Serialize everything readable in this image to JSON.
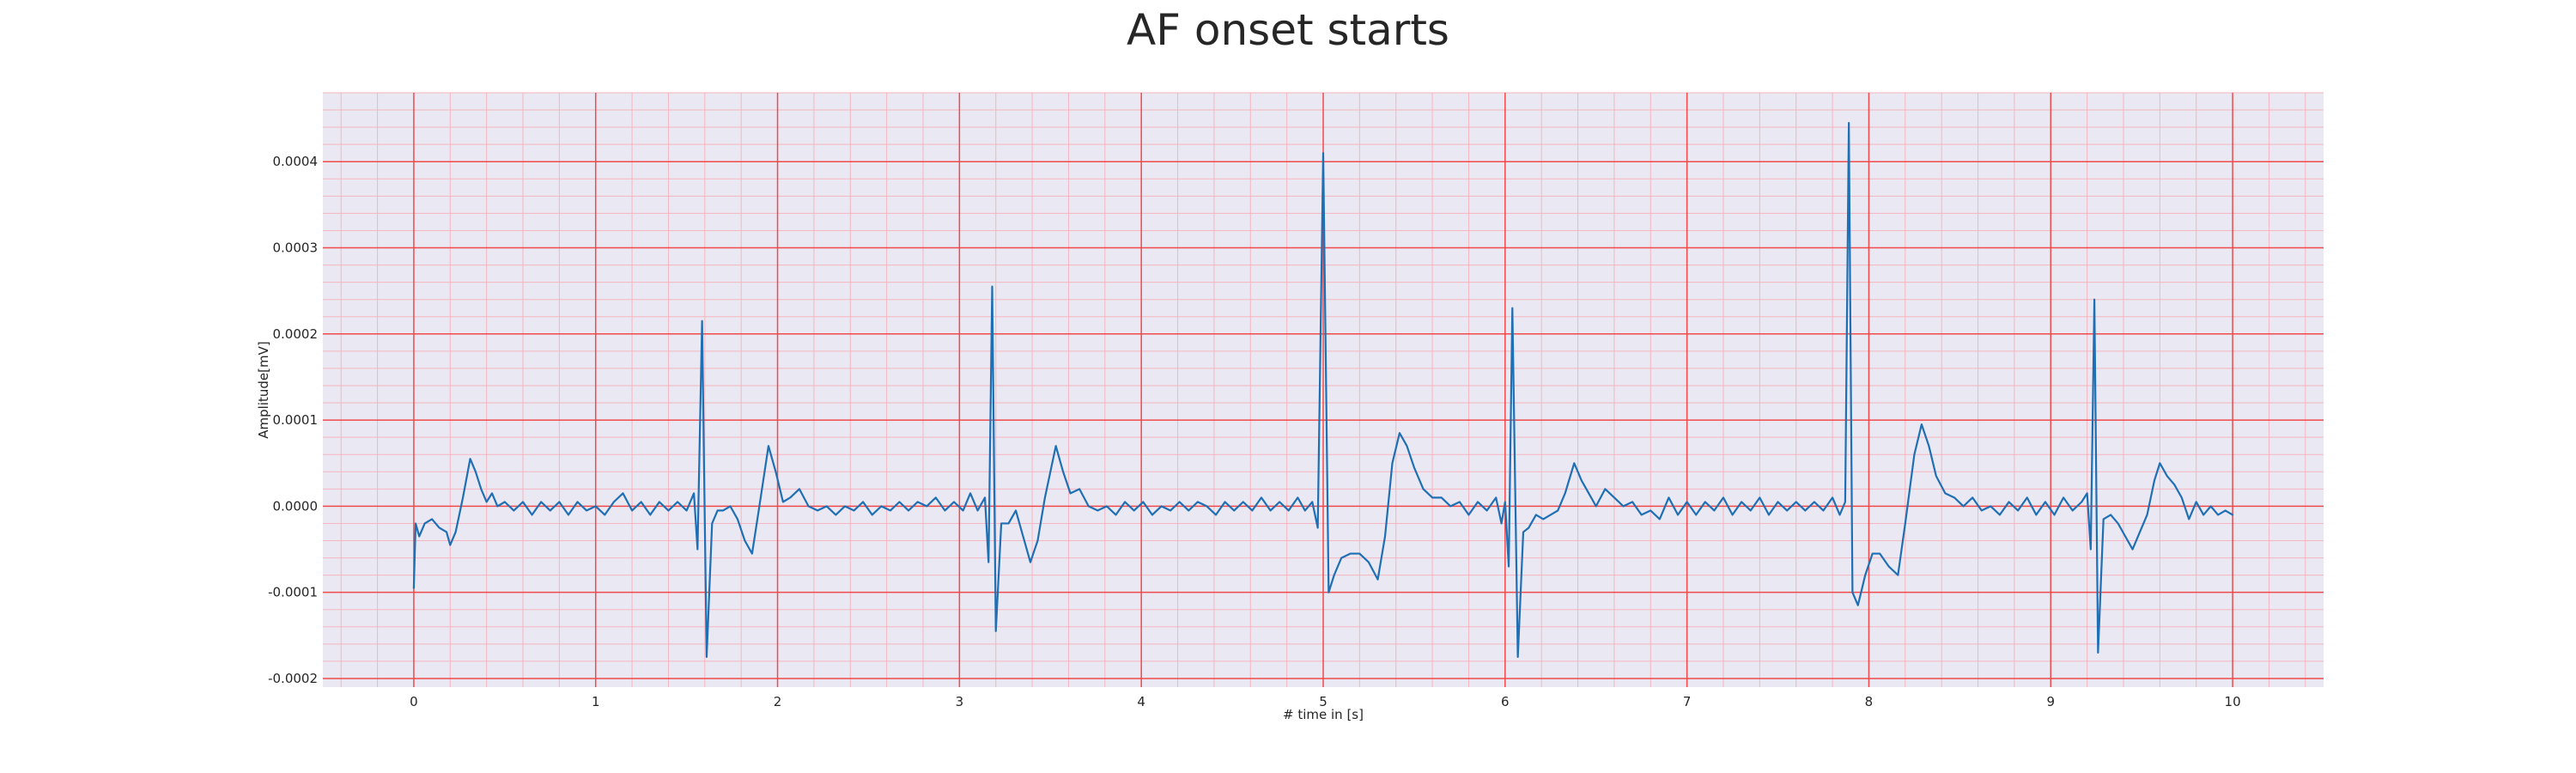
{
  "chart_data": {
    "type": "line",
    "title": "AF onset starts",
    "xlabel": "# time in [s]",
    "ylabel": "Amplitude[mV]",
    "xlim": [
      -0.5,
      10.5
    ],
    "ylim": [
      -0.00021,
      0.00048
    ],
    "x_ticks": [
      0,
      1,
      2,
      3,
      4,
      5,
      6,
      7,
      8,
      9,
      10
    ],
    "x_tick_labels": [
      "0",
      "1",
      "2",
      "3",
      "4",
      "5",
      "6",
      "7",
      "8",
      "9",
      "10"
    ],
    "y_ticks": [
      -0.0002,
      -0.0001,
      0.0,
      0.0001,
      0.0002,
      0.0003,
      0.0004
    ],
    "y_tick_labels": [
      "-0.0002",
      "-0.0001",
      "0.0000",
      "0.0001",
      "0.0002",
      "0.0003",
      "0.0004"
    ],
    "grid": true,
    "major_grid_color": "#f04a4a",
    "minor_grid_color": "#f6b5bf",
    "background_color": "#eae8f2",
    "series": [
      {
        "color": "#1f6fb4",
        "points": [
          [
            0.0,
            -9.5e-05
          ],
          [
            0.01,
            -2e-05
          ],
          [
            0.03,
            -3.5e-05
          ],
          [
            0.06,
            -2e-05
          ],
          [
            0.1,
            -1.5e-05
          ],
          [
            0.14,
            -2.5e-05
          ],
          [
            0.18,
            -3e-05
          ],
          [
            0.2,
            -4.5e-05
          ],
          [
            0.23,
            -3e-05
          ],
          [
            0.27,
            1e-05
          ],
          [
            0.31,
            5.5e-05
          ],
          [
            0.34,
            4e-05
          ],
          [
            0.37,
            2e-05
          ],
          [
            0.4,
            5e-06
          ],
          [
            0.43,
            1.5e-05
          ],
          [
            0.46,
            0.0
          ],
          [
            0.5,
            5e-06
          ],
          [
            0.55,
            -5e-06
          ],
          [
            0.6,
            5e-06
          ],
          [
            0.65,
            -1e-05
          ],
          [
            0.7,
            5e-06
          ],
          [
            0.75,
            -5e-06
          ],
          [
            0.8,
            5e-06
          ],
          [
            0.85,
            -1e-05
          ],
          [
            0.9,
            5e-06
          ],
          [
            0.95,
            -5e-06
          ],
          [
            1.0,
            0.0
          ],
          [
            1.05,
            -1e-05
          ],
          [
            1.1,
            5e-06
          ],
          [
            1.15,
            1.5e-05
          ],
          [
            1.2,
            -5e-06
          ],
          [
            1.25,
            5e-06
          ],
          [
            1.3,
            -1e-05
          ],
          [
            1.35,
            5e-06
          ],
          [
            1.4,
            -5e-06
          ],
          [
            1.45,
            5e-06
          ],
          [
            1.5,
            -5e-06
          ],
          [
            1.54,
            1.5e-05
          ],
          [
            1.56,
            -5e-05
          ],
          [
            1.585,
            0.000215
          ],
          [
            1.61,
            -0.000175
          ],
          [
            1.64,
            -2e-05
          ],
          [
            1.67,
            -5e-06
          ],
          [
            1.7,
            -5e-06
          ],
          [
            1.74,
            0.0
          ],
          [
            1.78,
            -1.5e-05
          ],
          [
            1.82,
            -4e-05
          ],
          [
            1.86,
            -5.5e-05
          ],
          [
            1.9,
            0.0
          ],
          [
            1.95,
            7e-05
          ],
          [
            1.99,
            4e-05
          ],
          [
            2.03,
            5e-06
          ],
          [
            2.07,
            1e-05
          ],
          [
            2.12,
            2e-05
          ],
          [
            2.17,
            0.0
          ],
          [
            2.22,
            -5e-06
          ],
          [
            2.27,
            0.0
          ],
          [
            2.32,
            -1e-05
          ],
          [
            2.37,
            0.0
          ],
          [
            2.42,
            -5e-06
          ],
          [
            2.47,
            5e-06
          ],
          [
            2.52,
            -1e-05
          ],
          [
            2.57,
            0.0
          ],
          [
            2.62,
            -5e-06
          ],
          [
            2.67,
            5e-06
          ],
          [
            2.72,
            -5e-06
          ],
          [
            2.77,
            5e-06
          ],
          [
            2.82,
            0.0
          ],
          [
            2.87,
            1e-05
          ],
          [
            2.92,
            -5e-06
          ],
          [
            2.97,
            5e-06
          ],
          [
            3.02,
            -5e-06
          ],
          [
            3.06,
            1.5e-05
          ],
          [
            3.1,
            -5e-06
          ],
          [
            3.14,
            1e-05
          ],
          [
            3.16,
            -6.5e-05
          ],
          [
            3.18,
            0.000255
          ],
          [
            3.2,
            -0.000145
          ],
          [
            3.23,
            -2e-05
          ],
          [
            3.27,
            -2e-05
          ],
          [
            3.31,
            -5e-06
          ],
          [
            3.35,
            -3.5e-05
          ],
          [
            3.39,
            -6.5e-05
          ],
          [
            3.43,
            -4e-05
          ],
          [
            3.47,
            1e-05
          ],
          [
            3.53,
            7e-05
          ],
          [
            3.57,
            4e-05
          ],
          [
            3.61,
            1.5e-05
          ],
          [
            3.66,
            2e-05
          ],
          [
            3.71,
            0.0
          ],
          [
            3.76,
            -5e-06
          ],
          [
            3.81,
            0.0
          ],
          [
            3.86,
            -1e-05
          ],
          [
            3.91,
            5e-06
          ],
          [
            3.96,
            -5e-06
          ],
          [
            4.01,
            5e-06
          ],
          [
            4.06,
            -1e-05
          ],
          [
            4.11,
            0.0
          ],
          [
            4.16,
            -5e-06
          ],
          [
            4.21,
            5e-06
          ],
          [
            4.26,
            -5e-06
          ],
          [
            4.31,
            5e-06
          ],
          [
            4.36,
            0.0
          ],
          [
            4.41,
            -1e-05
          ],
          [
            4.46,
            5e-06
          ],
          [
            4.51,
            -5e-06
          ],
          [
            4.56,
            5e-06
          ],
          [
            4.61,
            -5e-06
          ],
          [
            4.66,
            1e-05
          ],
          [
            4.71,
            -5e-06
          ],
          [
            4.76,
            5e-06
          ],
          [
            4.81,
            -5e-06
          ],
          [
            4.86,
            1e-05
          ],
          [
            4.9,
            -5e-06
          ],
          [
            4.94,
            5e-06
          ],
          [
            4.97,
            -2.5e-05
          ],
          [
            5.0,
            0.00041
          ],
          [
            5.03,
            -0.0001
          ],
          [
            5.06,
            -8e-05
          ],
          [
            5.1,
            -6e-05
          ],
          [
            5.15,
            -5.5e-05
          ],
          [
            5.2,
            -5.5e-05
          ],
          [
            5.25,
            -6.5e-05
          ],
          [
            5.3,
            -8.5e-05
          ],
          [
            5.34,
            -3.5e-05
          ],
          [
            5.38,
            5e-05
          ],
          [
            5.42,
            8.5e-05
          ],
          [
            5.46,
            7e-05
          ],
          [
            5.5,
            4.5e-05
          ],
          [
            5.55,
            2e-05
          ],
          [
            5.6,
            1e-05
          ],
          [
            5.65,
            1e-05
          ],
          [
            5.7,
            0.0
          ],
          [
            5.75,
            5e-06
          ],
          [
            5.8,
            -1e-05
          ],
          [
            5.85,
            5e-06
          ],
          [
            5.9,
            -5e-06
          ],
          [
            5.95,
            1e-05
          ],
          [
            5.98,
            -2e-05
          ],
          [
            6.0,
            5e-06
          ],
          [
            6.02,
            -7e-05
          ],
          [
            6.04,
            0.00023
          ],
          [
            6.07,
            -0.000175
          ],
          [
            6.1,
            -3e-05
          ],
          [
            6.13,
            -2.5e-05
          ],
          [
            6.17,
            -1e-05
          ],
          [
            6.21,
            -1.5e-05
          ],
          [
            6.25,
            -1e-05
          ],
          [
            6.29,
            -5e-06
          ],
          [
            6.33,
            1.5e-05
          ],
          [
            6.38,
            5e-05
          ],
          [
            6.42,
            3e-05
          ],
          [
            6.46,
            1.5e-05
          ],
          [
            6.5,
            0.0
          ],
          [
            6.55,
            2e-05
          ],
          [
            6.6,
            1e-05
          ],
          [
            6.65,
            0.0
          ],
          [
            6.7,
            5e-06
          ],
          [
            6.75,
            -1e-05
          ],
          [
            6.8,
            -5e-06
          ],
          [
            6.85,
            -1.5e-05
          ],
          [
            6.9,
            1e-05
          ],
          [
            6.95,
            -1e-05
          ],
          [
            7.0,
            5e-06
          ],
          [
            7.05,
            -1e-05
          ],
          [
            7.1,
            5e-06
          ],
          [
            7.15,
            -5e-06
          ],
          [
            7.2,
            1e-05
          ],
          [
            7.25,
            -1e-05
          ],
          [
            7.3,
            5e-06
          ],
          [
            7.35,
            -5e-06
          ],
          [
            7.4,
            1e-05
          ],
          [
            7.45,
            -1e-05
          ],
          [
            7.5,
            5e-06
          ],
          [
            7.55,
            -5e-06
          ],
          [
            7.6,
            5e-06
          ],
          [
            7.65,
            -5e-06
          ],
          [
            7.7,
            5e-06
          ],
          [
            7.75,
            -5e-06
          ],
          [
            7.8,
            1e-05
          ],
          [
            7.84,
            -1e-05
          ],
          [
            7.87,
            5e-06
          ],
          [
            7.89,
            0.000445
          ],
          [
            7.91,
            -0.0001
          ],
          [
            7.94,
            -0.000115
          ],
          [
            7.98,
            -8e-05
          ],
          [
            8.02,
            -5.5e-05
          ],
          [
            8.06,
            -5.5e-05
          ],
          [
            8.11,
            -7e-05
          ],
          [
            8.16,
            -8e-05
          ],
          [
            8.2,
            -2e-05
          ],
          [
            8.25,
            6e-05
          ],
          [
            8.29,
            9.5e-05
          ],
          [
            8.33,
            7e-05
          ],
          [
            8.37,
            3.5e-05
          ],
          [
            8.42,
            1.5e-05
          ],
          [
            8.47,
            1e-05
          ],
          [
            8.52,
            0.0
          ],
          [
            8.57,
            1e-05
          ],
          [
            8.62,
            -5e-06
          ],
          [
            8.67,
            0.0
          ],
          [
            8.72,
            -1e-05
          ],
          [
            8.77,
            5e-06
          ],
          [
            8.82,
            -5e-06
          ],
          [
            8.87,
            1e-05
          ],
          [
            8.92,
            -1e-05
          ],
          [
            8.97,
            5e-06
          ],
          [
            9.02,
            -1e-05
          ],
          [
            9.07,
            1e-05
          ],
          [
            9.12,
            -5e-06
          ],
          [
            9.17,
            5e-06
          ],
          [
            9.2,
            1.5e-05
          ],
          [
            9.22,
            -5e-05
          ],
          [
            9.24,
            0.00024
          ],
          [
            9.26,
            -0.00017
          ],
          [
            9.29,
            -1.5e-05
          ],
          [
            9.33,
            -1e-05
          ],
          [
            9.37,
            -2e-05
          ],
          [
            9.41,
            -3.5e-05
          ],
          [
            9.45,
            -5e-05
          ],
          [
            9.49,
            -3e-05
          ],
          [
            9.53,
            -1e-05
          ],
          [
            9.57,
            3e-05
          ],
          [
            9.6,
            5e-05
          ],
          [
            9.64,
            3.5e-05
          ],
          [
            9.68,
            2.5e-05
          ],
          [
            9.72,
            1e-05
          ],
          [
            9.76,
            -1.5e-05
          ],
          [
            9.8,
            5e-06
          ],
          [
            9.84,
            -1e-05
          ],
          [
            9.88,
            0.0
          ],
          [
            9.92,
            -1e-05
          ],
          [
            9.96,
            -5e-06
          ],
          [
            10.0,
            -1e-05
          ]
        ]
      }
    ]
  }
}
